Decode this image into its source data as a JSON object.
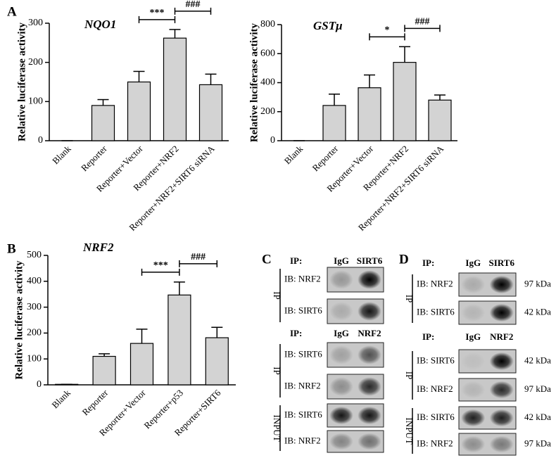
{
  "chart_data": [
    {
      "type": "bar",
      "panel": "A",
      "title": "NQO1",
      "ylabel": "Relative luciferase activity",
      "categories": [
        "Blank",
        "Reporter",
        "Reporter+Vector",
        "Reporter+NRF2",
        "Reporter+NRF2+SIRT6 siRNA"
      ],
      "values": [
        0,
        90,
        150,
        262,
        143
      ],
      "errors": [
        0,
        15,
        27,
        22,
        27
      ],
      "color": "#d3d3d3",
      "ylim": [
        0,
        300
      ],
      "yticks": [
        0,
        100,
        200,
        300
      ],
      "annotations": [
        {
          "text": "***",
          "between": [
            2,
            3
          ]
        },
        {
          "text": "###",
          "between": [
            3,
            4
          ]
        }
      ]
    },
    {
      "type": "bar",
      "title": "GSTμ",
      "ylabel": "Relative luciferase activity",
      "categories": [
        "Blank",
        "Reporter",
        "Reporter+Vector",
        "Reporter+NRF2",
        "Reporter+NRF2+SIRT6 siRNA"
      ],
      "values": [
        0,
        243,
        365,
        540,
        280
      ],
      "errors": [
        0,
        78,
        88,
        108,
        35
      ],
      "color": "#d3d3d3",
      "ylim": [
        0,
        800
      ],
      "yticks": [
        0,
        200,
        400,
        600,
        800
      ],
      "annotations": [
        {
          "text": "*",
          "between": [
            2,
            3
          ]
        },
        {
          "text": "###",
          "between": [
            3,
            4
          ]
        }
      ]
    },
    {
      "type": "bar",
      "panel": "B",
      "title": "NRF2",
      "ylabel": "Relative luciferase activity",
      "categories": [
        "Blank",
        "Reporter",
        "Reporter+Vector",
        "Reporter+p53",
        "Reporter+SIRT6"
      ],
      "values": [
        2,
        110,
        160,
        347,
        182
      ],
      "errors": [
        0,
        10,
        55,
        50,
        40
      ],
      "color": "#d3d3d3",
      "ylim": [
        0,
        500
      ],
      "yticks": [
        0,
        100,
        200,
        300,
        400,
        500
      ],
      "annotations": [
        {
          "text": "***",
          "between": [
            2,
            3
          ]
        },
        {
          "text": "###",
          "between": [
            3,
            4
          ]
        }
      ]
    }
  ],
  "blots": [
    {
      "panel": "C",
      "sections": [
        {
          "ip": "IP:",
          "lanes": [
            "IgG",
            "SIRT6"
          ],
          "groups": [
            {
              "name": "IP",
              "rows": [
                {
                  "label": "IB: NRF2"
                },
                {
                  "label": "IB: SIRT6"
                }
              ]
            }
          ]
        },
        {
          "ip": "IP:",
          "lanes": [
            "IgG",
            "NRF2"
          ],
          "groups": [
            {
              "name": "IP",
              "rows": [
                {
                  "label": "IB: SIRT6"
                },
                {
                  "label": "IB: NRF2"
                }
              ]
            },
            {
              "name": "INPUT",
              "rows": [
                {
                  "label": "IB: SIRT6"
                },
                {
                  "label": "IB: NRF2"
                }
              ]
            }
          ]
        }
      ]
    },
    {
      "panel": "D",
      "sections": [
        {
          "ip": "IP:",
          "lanes": [
            "IgG",
            "SIRT6"
          ],
          "groups": [
            {
              "name": "IP",
              "rows": [
                {
                  "label": "IB: NRF2",
                  "size": "97 kDa"
                },
                {
                  "label": "IB: SIRT6",
                  "size": "42 kDa"
                }
              ]
            }
          ]
        },
        {
          "ip": "IP:",
          "lanes": [
            "IgG",
            "NRF2"
          ],
          "groups": [
            {
              "name": "IP",
              "rows": [
                {
                  "label": "IB: SIRT6",
                  "size": "42 kDa"
                },
                {
                  "label": "IB: NRF2",
                  "size": "97 kDa"
                }
              ]
            },
            {
              "name": "INPUT",
              "rows": [
                {
                  "label": "IB: SIRT6",
                  "size": "42 kDa"
                },
                {
                  "label": "IB: NRF2",
                  "size": "97 kDa"
                }
              ]
            }
          ]
        }
      ]
    }
  ]
}
